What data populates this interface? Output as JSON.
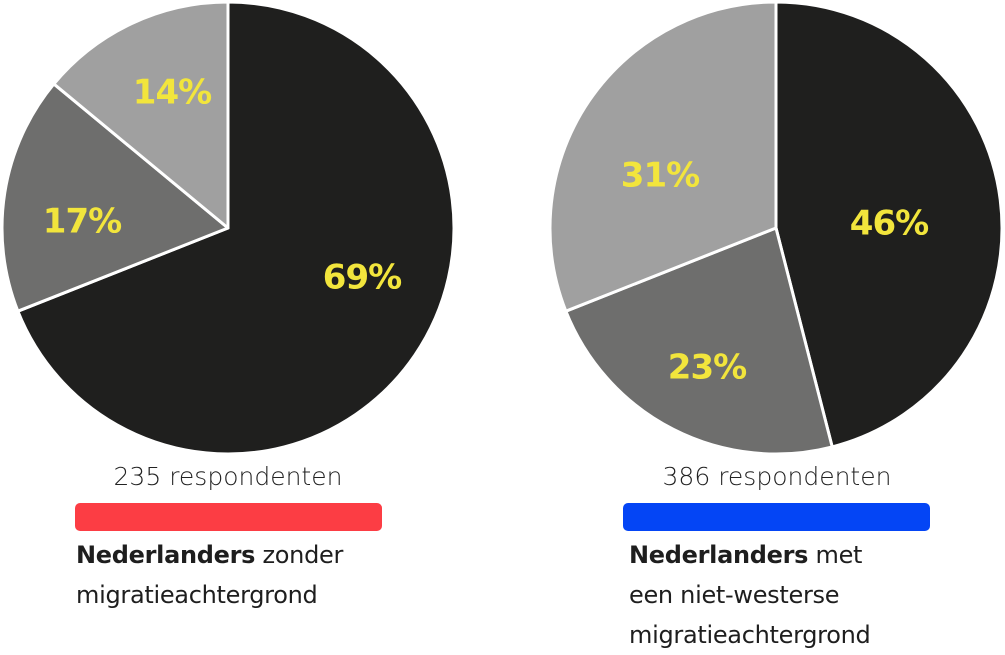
{
  "colors": {
    "slice_dark": "#1f1f1e",
    "slice_mid": "#6e6e6d",
    "slice_light": "#a0a0a0",
    "label": "#f2e53c",
    "bar_left": "#fc3d44",
    "bar_right": "#0445f5"
  },
  "chart_data": [
    {
      "type": "pie",
      "slices": [
        {
          "label": "69%",
          "value": 69,
          "color": "#1f1f1e"
        },
        {
          "label": "17%",
          "value": 17,
          "color": "#6e6e6d"
        },
        {
          "label": "14%",
          "value": 14,
          "color": "#a0a0a0"
        }
      ],
      "respondents": "235 respondenten",
      "bar_color": "#fc3d44",
      "caption_bold": "Nederlanders",
      "caption_rest": " zonder",
      "caption_line2": "migratieachtergrond",
      "caption_line3": ""
    },
    {
      "type": "pie",
      "slices": [
        {
          "label": "46%",
          "value": 46,
          "color": "#1f1f1e"
        },
        {
          "label": "23%",
          "value": 23,
          "color": "#6e6e6d"
        },
        {
          "label": "31%",
          "value": 31,
          "color": "#a0a0a0"
        }
      ],
      "respondents": "386 respondenten",
      "bar_color": "#0445f5",
      "caption_bold": "Nederlanders",
      "caption_rest": " met",
      "caption_line2": "een niet-westerse",
      "caption_line3": "migratieachtergrond"
    }
  ]
}
